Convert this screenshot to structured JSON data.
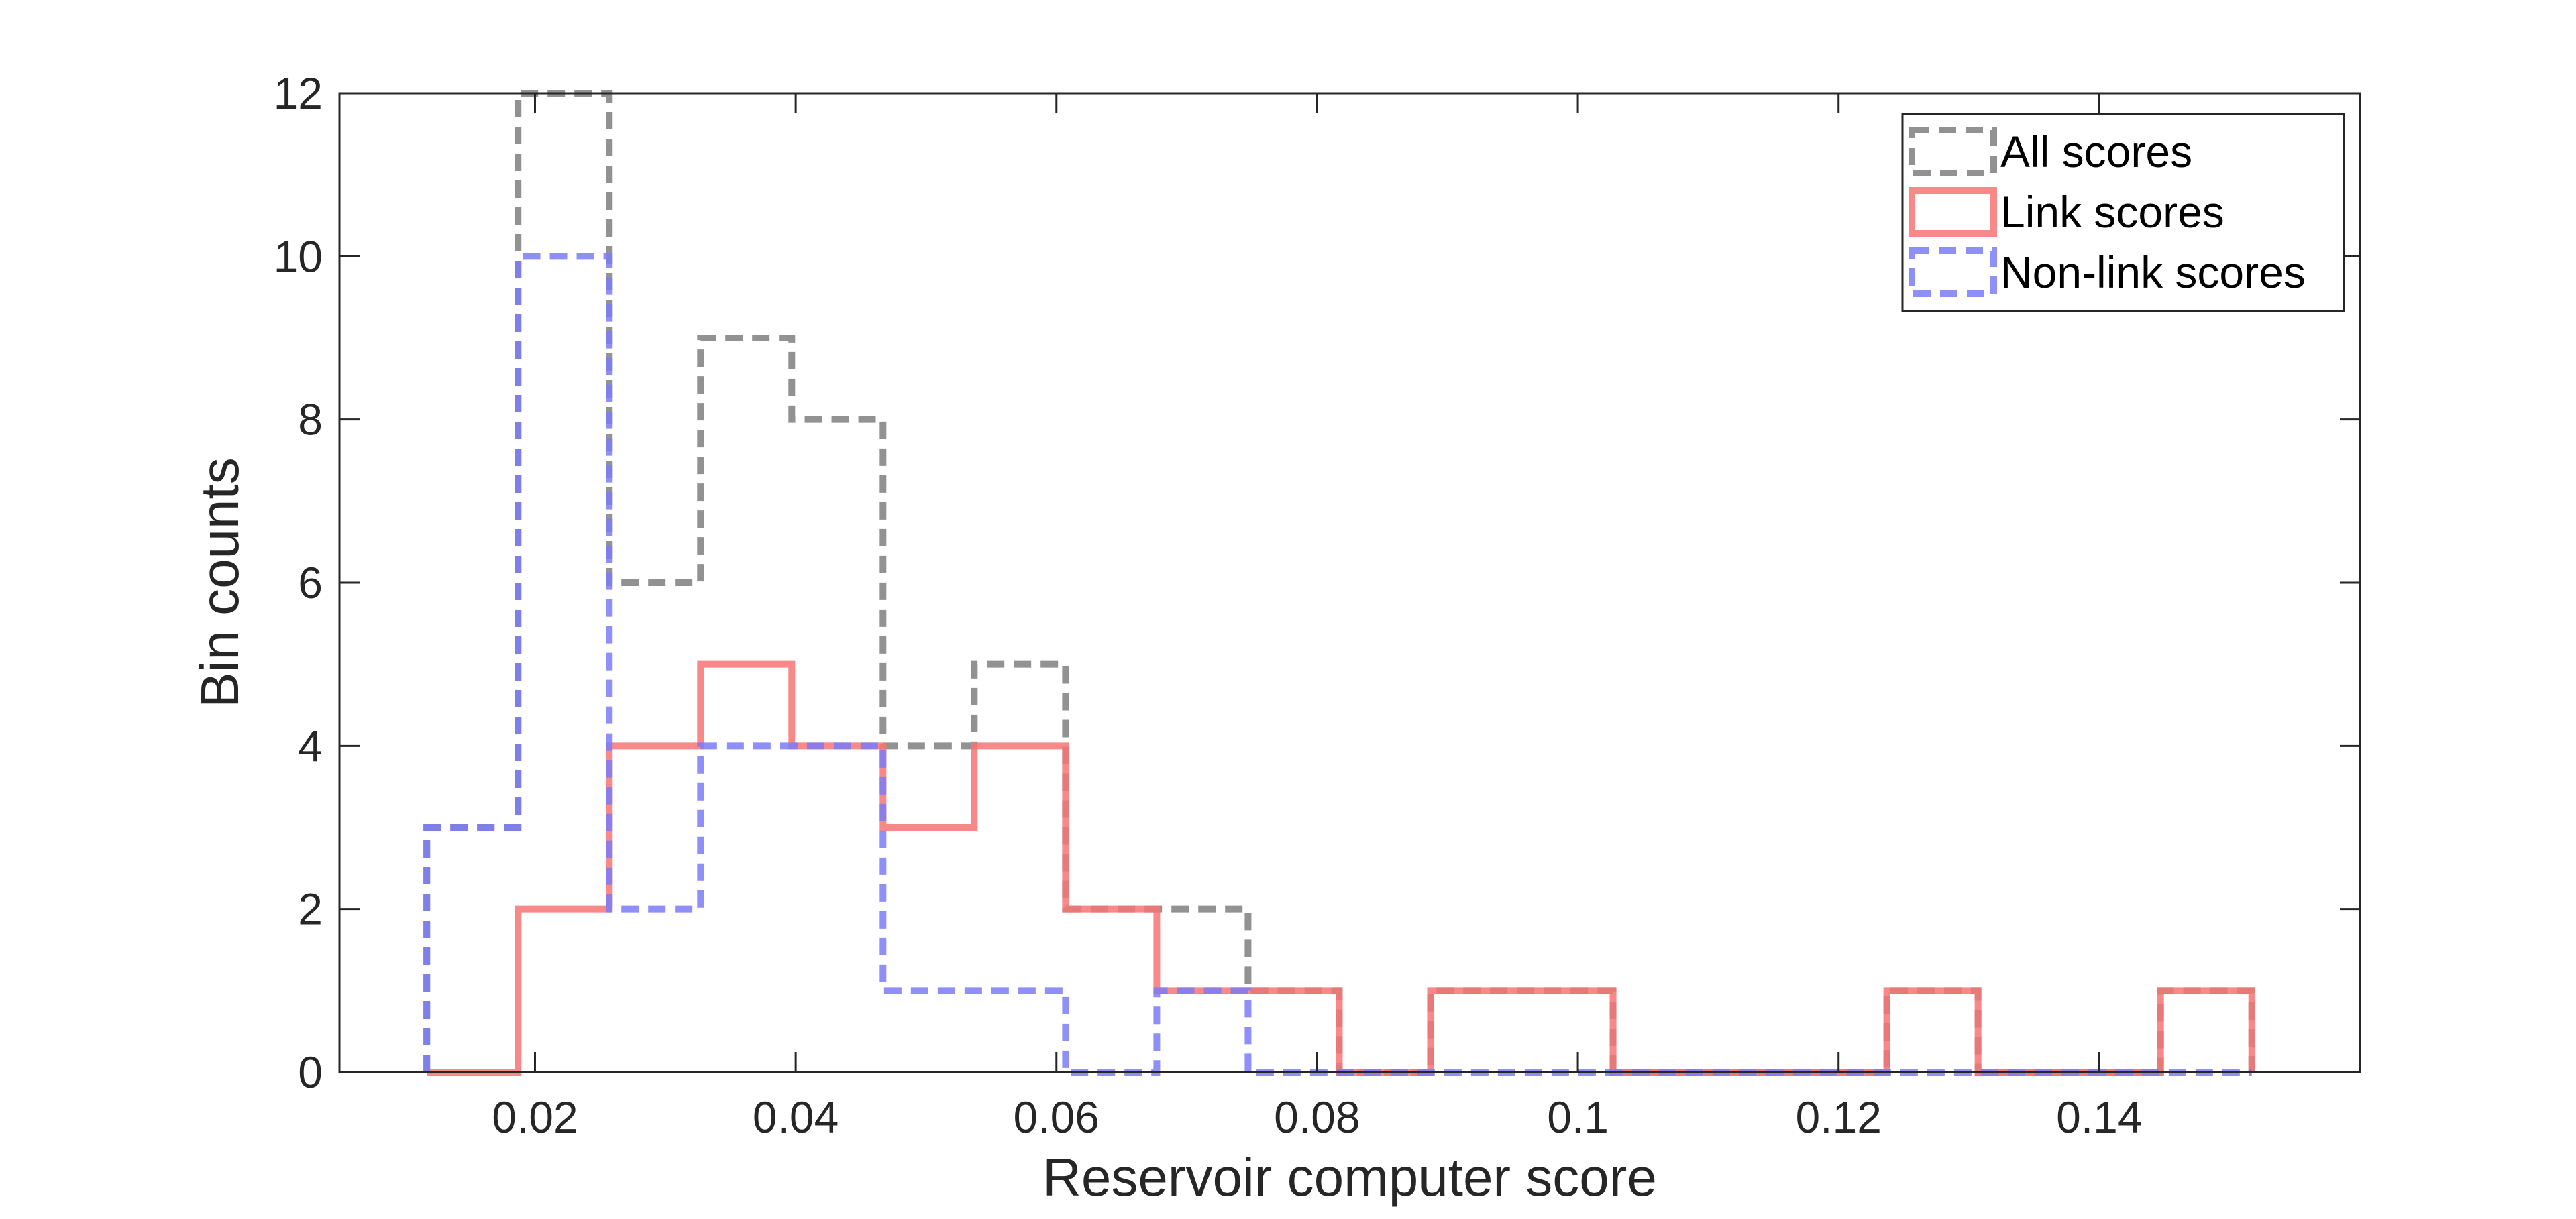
{
  "chart_data": {
    "type": "histogram",
    "title": "",
    "xlabel": "Reservoir computer score",
    "ylabel": "Bin counts",
    "xlim": [
      0.005,
      0.16
    ],
    "ylim": [
      0,
      12
    ],
    "xticks": [
      0.02,
      0.04,
      0.06,
      0.08,
      0.1,
      0.12,
      0.14
    ],
    "xtick_labels": [
      "0.02",
      "0.04",
      "0.06",
      "0.08",
      "0.1",
      "0.12",
      "0.14"
    ],
    "yticks": [
      0,
      2,
      4,
      6,
      8,
      10,
      12
    ],
    "ytick_labels": [
      "0",
      "2",
      "4",
      "6",
      "8",
      "10",
      "12"
    ],
    "bin_edges": [
      0.0117,
      0.0187,
      0.0257,
      0.0327,
      0.0397,
      0.0467,
      0.0537,
      0.0607,
      0.0677,
      0.0747,
      0.0817,
      0.0887,
      0.0957,
      0.1027,
      0.1097,
      0.1167,
      0.1237,
      0.1307,
      0.1377,
      0.1447,
      0.1517
    ],
    "grid": false,
    "legend_position": "top-right",
    "series": [
      {
        "name": "All scores",
        "color": "#7f7f7f",
        "line_style": "dashed",
        "counts": [
          3,
          12,
          6,
          9,
          8,
          4,
          5,
          2,
          2,
          1,
          0,
          1,
          1,
          0,
          0,
          0,
          1,
          0,
          0,
          1
        ]
      },
      {
        "name": "Link scores",
        "color": "#f87474",
        "line_style": "solid",
        "counts": [
          0,
          2,
          4,
          5,
          4,
          3,
          4,
          2,
          1,
          1,
          0,
          1,
          1,
          0,
          0,
          0,
          1,
          0,
          0,
          1
        ]
      },
      {
        "name": "Non-link scores",
        "color": "#7b7bf8",
        "line_style": "dashed",
        "counts": [
          3,
          10,
          2,
          4,
          4,
          1,
          1,
          0,
          1,
          0,
          0,
          0,
          0,
          0,
          0,
          0,
          0,
          0,
          0,
          0
        ]
      }
    ]
  }
}
